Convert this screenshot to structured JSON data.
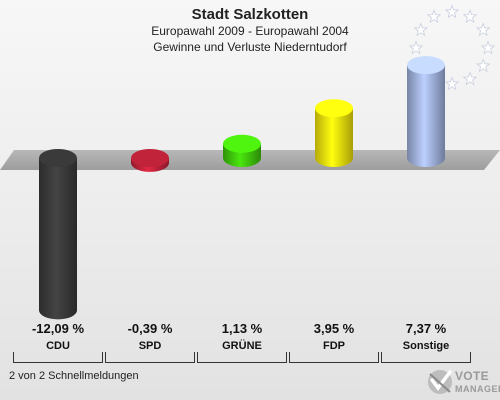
{
  "header": {
    "title": "Stadt Salzkotten",
    "subtitle": "Europawahl 2009 - Europawahl 2004",
    "subtitle2": "Gewinne und Verluste Niederntudorf"
  },
  "footer": {
    "text": "2 von 2 Schnellmeldungen"
  },
  "logo": {
    "line1": "VOTE",
    "line2": "MANAGER"
  },
  "colors": {
    "CDU": "#3a3a3a",
    "SPD": "#c0233a",
    "GRUENE": "#3fc40c",
    "FDP": "#f2e20c",
    "Sonstige": "#9fb0dc",
    "baseline": "#a9a9a9"
  },
  "chart_data": {
    "type": "bar",
    "title": "Stadt Salzkotten",
    "categories": [
      "CDU",
      "SPD",
      "GRÜNE",
      "FDP",
      "Sonstige"
    ],
    "values": [
      -12.09,
      -0.39,
      1.13,
      3.95,
      7.37
    ],
    "value_labels": [
      "-12,09 %",
      "-0,39 %",
      "1,13 %",
      "3,95 %",
      "7,37 %"
    ],
    "unit": "%",
    "xlabel": "",
    "ylabel": ""
  }
}
